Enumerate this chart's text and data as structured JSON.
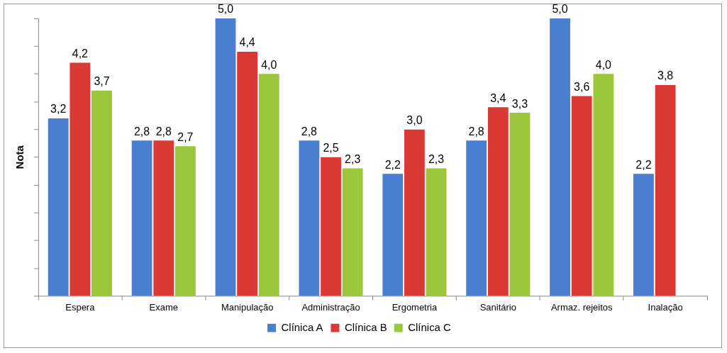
{
  "chart_data": {
    "type": "bar",
    "ylabel": "Nota",
    "categories": [
      "Espera",
      "Exame",
      "Manipulação",
      "Administração",
      "Ergometria",
      "Sanitário",
      "Armaz. rejeitos",
      "Inalação"
    ],
    "series": [
      {
        "name": "Clínica A",
        "color": "#4a7fd0",
        "values": [
          3.2,
          2.8,
          5.0,
          2.8,
          2.2,
          2.8,
          5.0,
          2.2
        ],
        "value_labels": [
          "3,2",
          "2,8",
          "5,0",
          "2,8",
          "2,2",
          "2,8",
          "5,0",
          "2,2"
        ]
      },
      {
        "name": "Clínica B",
        "color": "#d93a35",
        "values": [
          4.2,
          2.8,
          4.4,
          2.5,
          3.0,
          3.4,
          3.6,
          3.8
        ],
        "value_labels": [
          "4,2",
          "2,8",
          "4,4",
          "2,5",
          "3,0",
          "3,4",
          "3,6",
          "3,8"
        ]
      },
      {
        "name": "Clínica C",
        "color": "#9cc63c",
        "values": [
          3.7,
          2.7,
          4.0,
          2.3,
          2.3,
          3.3,
          4.0,
          null
        ],
        "value_labels": [
          "3,7",
          "2,7",
          "4,0",
          "2,3",
          "2,3",
          "3,3",
          "4,0",
          null
        ]
      }
    ],
    "ylim": [
      0,
      5
    ],
    "yticks": [
      {
        "value": 0,
        "label": null
      },
      {
        "value": 0.5,
        "label": null
      },
      {
        "value": 1,
        "label": null
      },
      {
        "value": 1.5,
        "label": null
      },
      {
        "value": 2,
        "label": null
      },
      {
        "value": 2.5,
        "label": null
      },
      {
        "value": 3,
        "label": null
      },
      {
        "value": 3.5,
        "label": null
      },
      {
        "value": 4,
        "label": null
      },
      {
        "value": 4.5,
        "label": null
      },
      {
        "value": 5,
        "label": null
      }
    ],
    "grid": false,
    "legend": "bottom"
  }
}
